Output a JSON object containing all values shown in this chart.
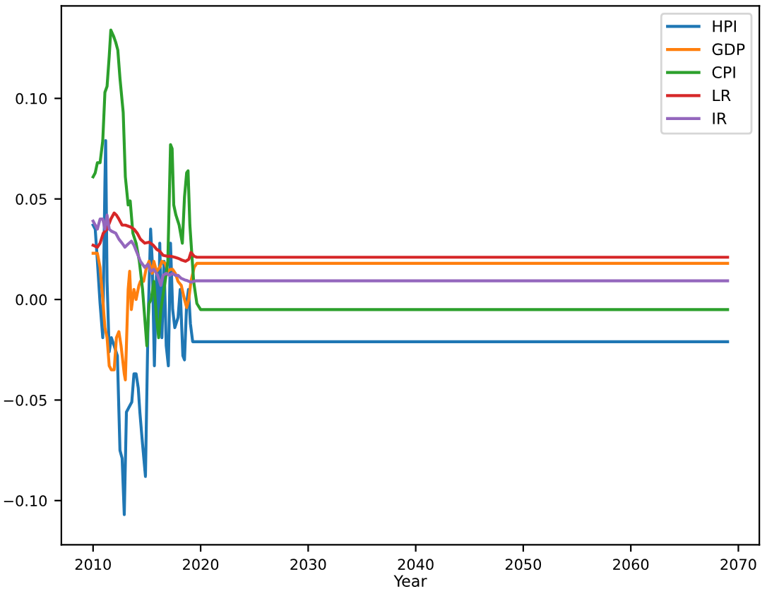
{
  "chart_data": {
    "type": "line",
    "xlabel": "Year",
    "xlim": [
      2007.05,
      2071.95
    ],
    "ylim": [
      -0.122,
      0.146
    ],
    "xticks": [
      2010,
      2020,
      2030,
      2040,
      2050,
      2060,
      2070
    ],
    "yticks": [
      {
        "value": -0.1,
        "label": "−0.10"
      },
      {
        "value": -0.05,
        "label": "−0.05"
      },
      {
        "value": 0,
        "label": "0.00"
      },
      {
        "value": 0.05,
        "label": "0.05"
      },
      {
        "value": 0.1,
        "label": "0.10"
      }
    ],
    "grid": false,
    "legend": "top right",
    "marker": "none",
    "line_style": "solid",
    "series": [
      {
        "name": "HPI",
        "color": "#1f77b4",
        "x": [
          2010.0,
          2010.2,
          2010.4,
          2010.65,
          2010.9,
          2011.1,
          2011.17,
          2011.3,
          2011.5,
          2011.7,
          2011.96,
          2012.26,
          2012.5,
          2012.7,
          2012.9,
          2013.1,
          2013.3,
          2013.6,
          2013.8,
          2014.0,
          2014.2,
          2014.35,
          2014.6,
          2014.87,
          2015.1,
          2015.35,
          2015.5,
          2015.7,
          2015.9,
          2016.1,
          2016.2,
          2016.4,
          2016.6,
          2016.8,
          2017.0,
          2017.2,
          2017.4,
          2017.6,
          2017.9,
          2018.1,
          2018.35,
          2018.5,
          2018.7,
          2018.87,
          2019.05,
          2019.26,
          2025,
          2030,
          2040,
          2050,
          2060,
          2069
        ],
        "values": [
          0.037,
          0.035,
          0.019,
          -0.002,
          -0.019,
          0.058,
          0.079,
          0.009,
          -0.026,
          -0.019,
          -0.023,
          -0.028,
          -0.075,
          -0.079,
          -0.107,
          -0.056,
          -0.054,
          -0.051,
          -0.037,
          -0.037,
          -0.044,
          -0.056,
          -0.072,
          -0.088,
          -0.014,
          0.035,
          0.019,
          -0.033,
          0.014,
          -0.014,
          0.028,
          -0.019,
          0.019,
          -0.023,
          -0.033,
          0.028,
          -0.005,
          -0.014,
          -0.009,
          0.005,
          -0.028,
          -0.03,
          -0.002,
          0.005,
          -0.012,
          -0.021,
          -0.021,
          -0.021,
          -0.021,
          -0.021,
          -0.021,
          -0.021
        ]
      },
      {
        "name": "GDP",
        "color": "#ff7f0e",
        "x": [
          2010.0,
          2010.4,
          2010.65,
          2010.9,
          2011.1,
          2011.3,
          2011.5,
          2011.7,
          2011.96,
          2012.17,
          2012.4,
          2012.6,
          2012.9,
          2013.0,
          2013.26,
          2013.4,
          2013.56,
          2013.8,
          2014.0,
          2014.26,
          2014.4,
          2014.7,
          2014.96,
          2015.2,
          2015.5,
          2015.65,
          2015.9,
          2016.2,
          2016.4,
          2016.7,
          2016.95,
          2017.2,
          2017.4,
          2017.65,
          2017.9,
          2018.2,
          2018.5,
          2018.7,
          2018.9,
          2019.1,
          2019.4,
          2019.65,
          2020,
          2030,
          2040,
          2050,
          2060,
          2069
        ],
        "values": [
          0.023,
          0.023,
          0.016,
          0.0,
          -0.014,
          -0.019,
          -0.033,
          -0.035,
          -0.035,
          -0.019,
          -0.016,
          -0.023,
          -0.037,
          -0.04,
          0.005,
          0.014,
          -0.005,
          0.005,
          0.0,
          0.007,
          0.009,
          0.009,
          0.016,
          0.019,
          0.013,
          0.019,
          0.014,
          0.016,
          0.019,
          0.018,
          0.014,
          0.015,
          0.015,
          0.013,
          0.009,
          0.007,
          0.0,
          -0.004,
          0.0,
          0.009,
          0.016,
          0.018,
          0.018,
          0.018,
          0.018,
          0.018,
          0.018,
          0.018
        ]
      },
      {
        "name": "CPI",
        "color": "#2ca02c",
        "x": [
          2010.0,
          2010.2,
          2010.4,
          2010.65,
          2010.9,
          2011.1,
          2011.3,
          2011.5,
          2011.65,
          2011.9,
          2012.1,
          2012.3,
          2012.5,
          2012.8,
          2013.0,
          2013.26,
          2013.45,
          2013.7,
          2014.0,
          2014.3,
          2014.6,
          2014.9,
          2015.0,
          2015.2,
          2015.4,
          2015.65,
          2015.9,
          2016.1,
          2016.3,
          2016.5,
          2016.7,
          2016.95,
          2017.2,
          2017.35,
          2017.5,
          2017.7,
          2018.0,
          2018.3,
          2018.5,
          2018.7,
          2018.83,
          2019.0,
          2019.35,
          2019.65,
          2020,
          2030,
          2040,
          2050,
          2060,
          2069
        ],
        "values": [
          0.061,
          0.063,
          0.068,
          0.068,
          0.079,
          0.103,
          0.106,
          0.121,
          0.134,
          0.131,
          0.128,
          0.124,
          0.11,
          0.093,
          0.061,
          0.047,
          0.049,
          0.033,
          0.028,
          0.019,
          0.005,
          -0.016,
          -0.023,
          -0.002,
          0.0,
          0.009,
          -0.009,
          -0.019,
          -0.005,
          0.002,
          0.009,
          0.019,
          0.077,
          0.075,
          0.047,
          0.042,
          0.037,
          0.028,
          0.051,
          0.063,
          0.064,
          0.037,
          0.009,
          -0.002,
          -0.005,
          -0.005,
          -0.005,
          -0.005,
          -0.005,
          -0.005
        ]
      },
      {
        "name": "LR",
        "color": "#d62728",
        "x": [
          2010.0,
          2010.4,
          2010.65,
          2010.95,
          2011.3,
          2011.65,
          2011.96,
          2012.17,
          2012.4,
          2012.7,
          2013.0,
          2013.5,
          2013.8,
          2014.1,
          2014.4,
          2014.8,
          2015.2,
          2015.6,
          2015.9,
          2016.2,
          2016.5,
          2016.9,
          2017.2,
          2017.6,
          2017.9,
          2018.26,
          2018.6,
          2018.9,
          2019.1,
          2019.4,
          2019.65,
          2030,
          2040,
          2050,
          2060,
          2069
        ],
        "values": [
          0.027,
          0.026,
          0.028,
          0.033,
          0.035,
          0.04,
          0.043,
          0.042,
          0.04,
          0.037,
          0.037,
          0.036,
          0.035,
          0.033,
          0.03,
          0.028,
          0.0285,
          0.027,
          0.025,
          0.024,
          0.022,
          0.0215,
          0.0215,
          0.021,
          0.0205,
          0.0196,
          0.019,
          0.02,
          0.0234,
          0.0215,
          0.021,
          0.021,
          0.021,
          0.021,
          0.021,
          0.021
        ]
      },
      {
        "name": "IR",
        "color": "#9467bd",
        "x": [
          2010.0,
          2010.2,
          2010.4,
          2010.65,
          2010.9,
          2011.1,
          2011.3,
          2011.5,
          2011.7,
          2012.1,
          2012.4,
          2012.7,
          2012.96,
          2013.26,
          2013.56,
          2013.8,
          2014.1,
          2014.4,
          2014.8,
          2015.1,
          2015.35,
          2015.65,
          2016.0,
          2016.3,
          2016.5,
          2016.8,
          2017.1,
          2017.4,
          2017.65,
          2017.9,
          2018.2,
          2018.5,
          2018.8,
          2019.1,
          2019.56,
          2020,
          2030,
          2040,
          2050,
          2060,
          2069
        ],
        "values": [
          0.039,
          0.037,
          0.035,
          0.04,
          0.04,
          0.035,
          0.042,
          0.035,
          0.034,
          0.033,
          0.03,
          0.028,
          0.026,
          0.0276,
          0.029,
          0.027,
          0.023,
          0.019,
          0.016,
          0.0175,
          0.014,
          0.015,
          0.012,
          0.007,
          0.012,
          0.013,
          0.012,
          0.013,
          0.012,
          0.012,
          0.0105,
          0.0098,
          0.0093,
          0.0086,
          0.0093,
          0.0093,
          0.0093,
          0.0093,
          0.0093,
          0.0093,
          0.0093
        ]
      }
    ]
  }
}
